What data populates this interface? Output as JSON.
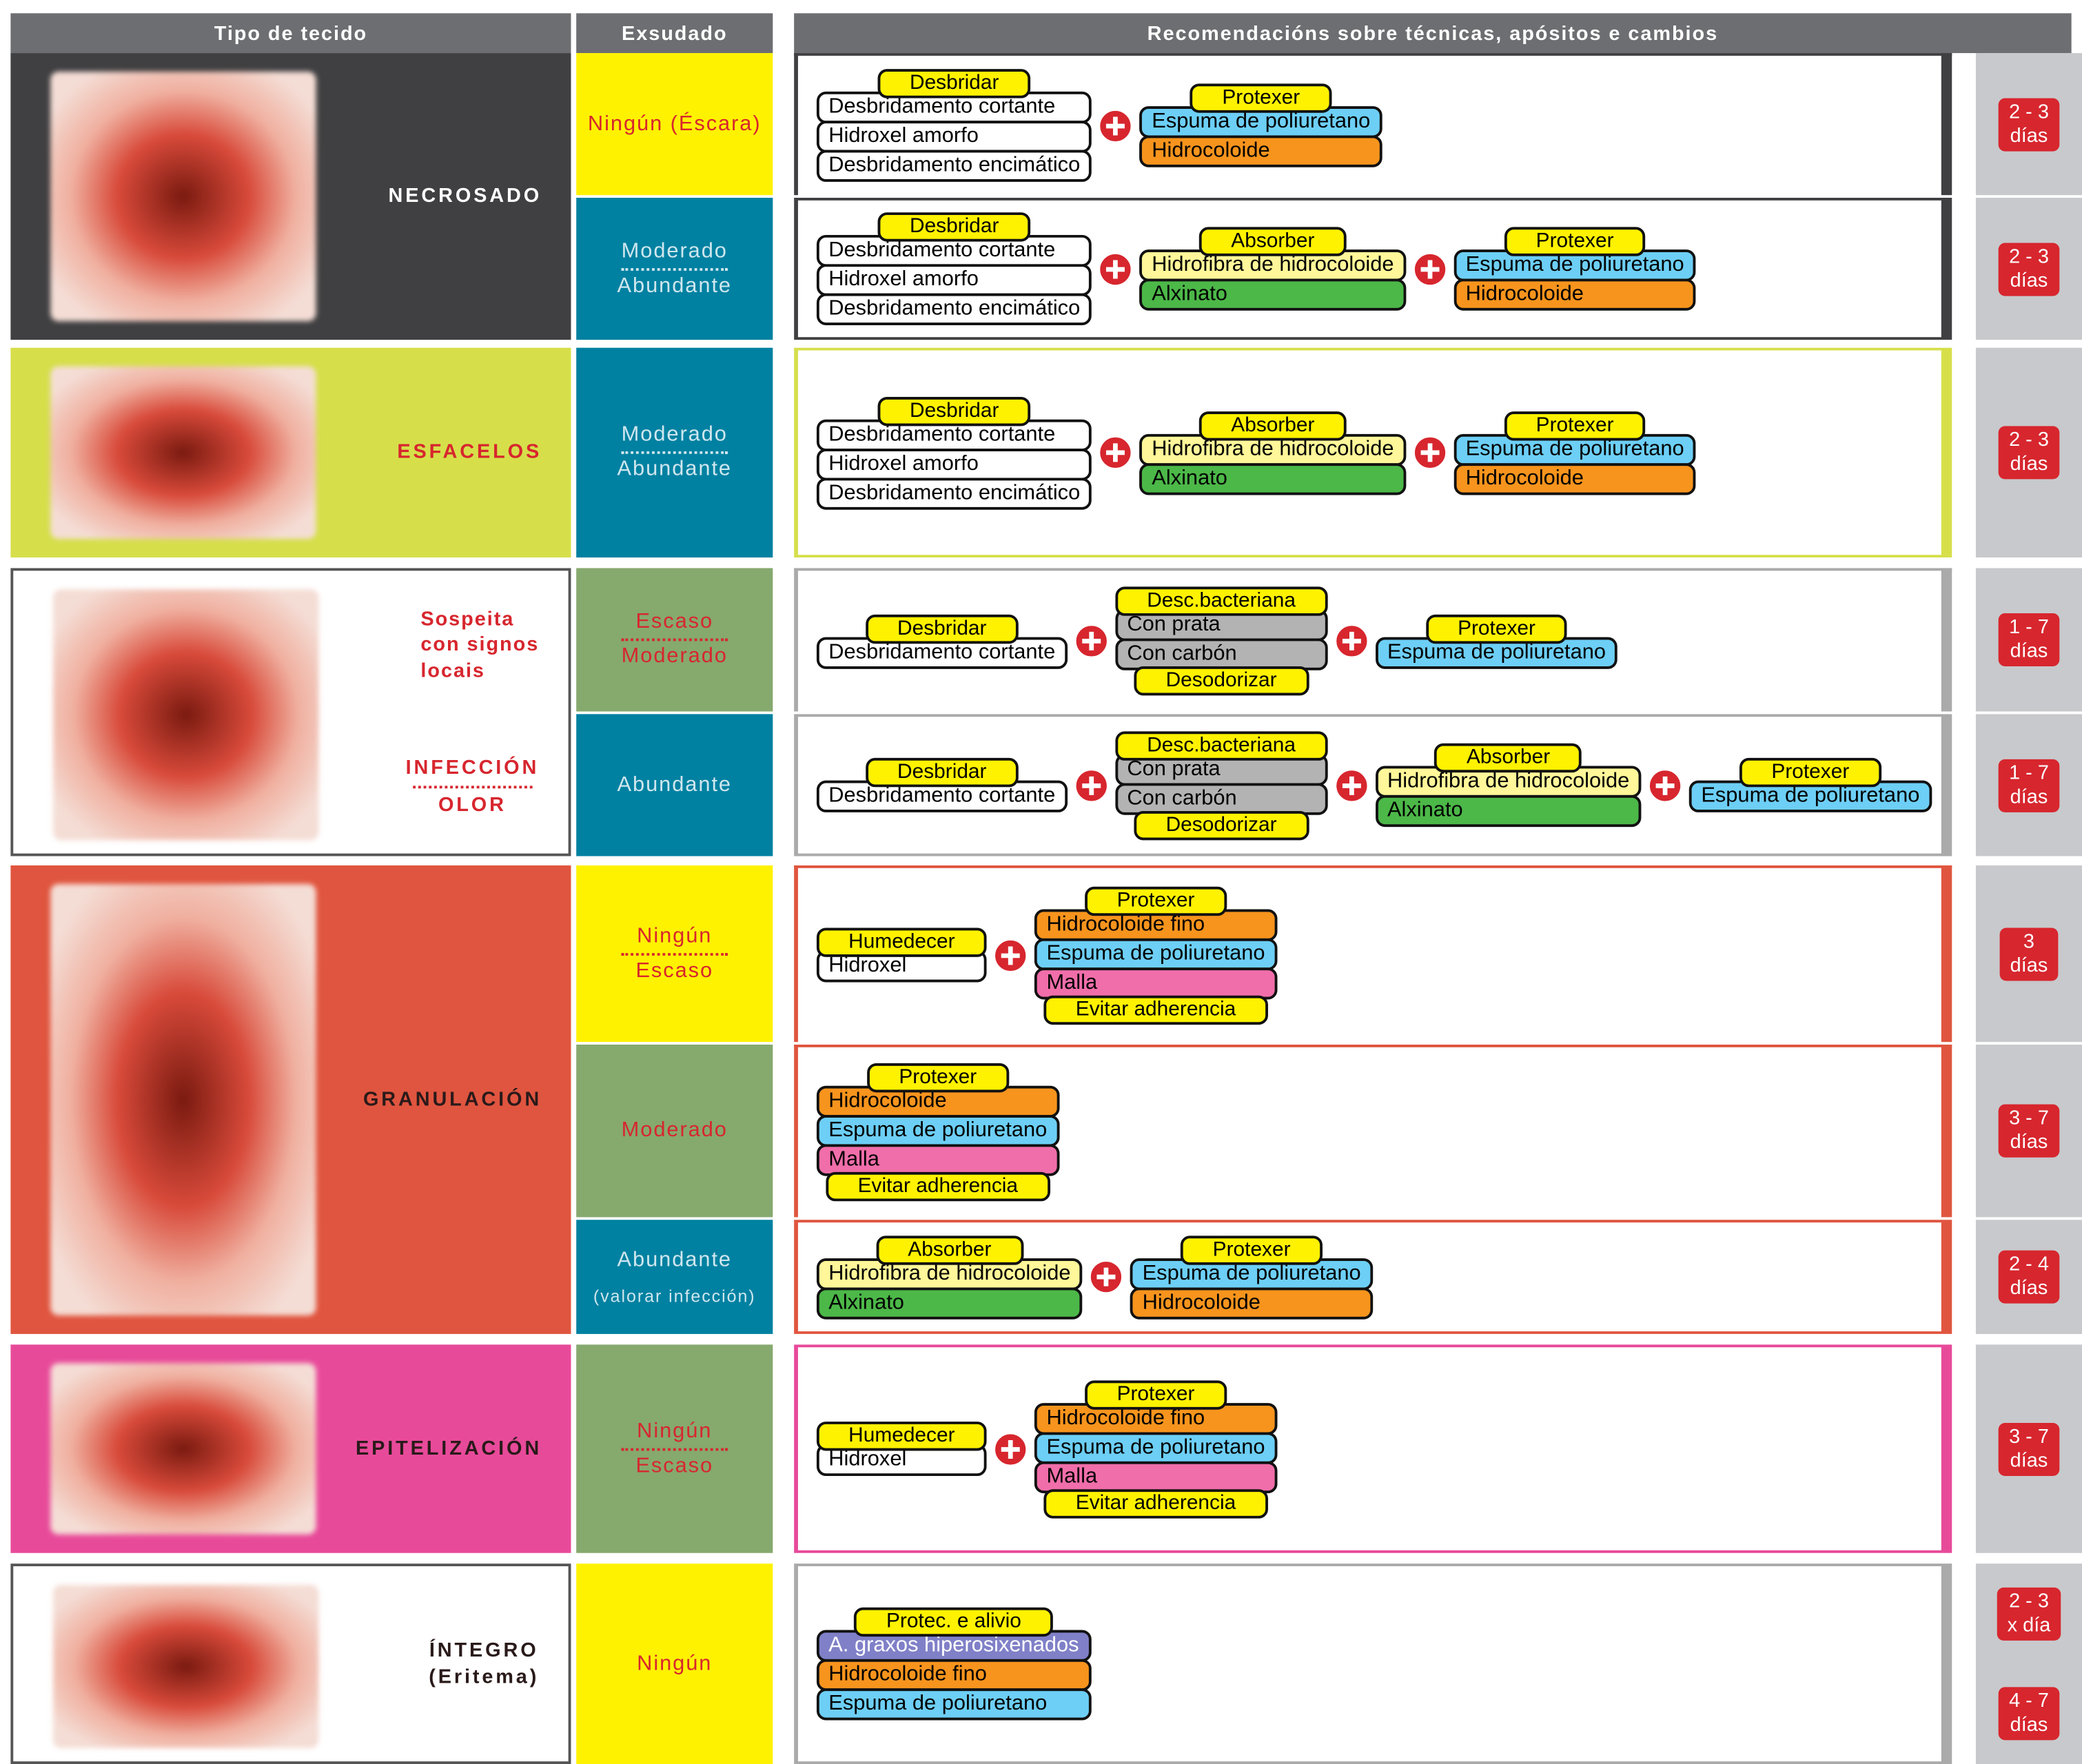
{
  "header": {
    "columns": [
      "Tipo de tecido",
      "Exsudado",
      "Recomendacións sobre técnicas, apósitos e cambios"
    ]
  },
  "sections": [
    {
      "color": "#404042",
      "text_color": "#ffffff",
      "tissue": [
        {
          "lines": [
            "NECROSADO"
          ],
          "dotted": false
        }
      ],
      "rows": [
        {
          "exudate": {
            "lines": [
              "Ningún (Éscara)"
            ],
            "color": "#fff200",
            "text_color": "#d7262e"
          },
          "groups": [
            {
              "top": "Desbridar",
              "items": [
                {
                  "text": "Desbridamento cortante",
                  "color": "#ffffff"
                },
                {
                  "text": "Hidroxel amorfo",
                  "color": "#ffffff"
                },
                {
                  "text": "Desbridamento encimático",
                  "color": "#ffffff"
                }
              ]
            },
            {
              "top": "Protexer",
              "items": [
                {
                  "text": "Espuma de poliuretano",
                  "color": "#6dcff6"
                },
                {
                  "text": "Hidrocoloide",
                  "color": "#f7941d"
                }
              ]
            }
          ],
          "freq": [
            [
              "2 - 3",
              "días"
            ]
          ]
        },
        {
          "exudate": {
            "lines": [
              "Moderado",
              "Abundante"
            ],
            "color": "#0081a1",
            "text_color": "#cfe6ee"
          },
          "groups": [
            {
              "top": "Desbridar",
              "items": [
                {
                  "text": "Desbridamento cortante",
                  "color": "#ffffff"
                },
                {
                  "text": "Hidroxel amorfo",
                  "color": "#ffffff"
                },
                {
                  "text": "Desbridamento encimático",
                  "color": "#ffffff"
                }
              ]
            },
            {
              "top": "Absorber",
              "items": [
                {
                  "text": "Hidrofibra de hidrocoloide",
                  "color": "#fff799"
                },
                {
                  "text": "Alxinato",
                  "color": "#4cb848"
                }
              ]
            },
            {
              "top": "Protexer",
              "items": [
                {
                  "text": "Espuma de poliuretano",
                  "color": "#6dcff6"
                },
                {
                  "text": "Hidrocoloide",
                  "color": "#f7941d"
                }
              ]
            }
          ],
          "freq": [
            [
              "2 - 3",
              "días"
            ]
          ]
        }
      ]
    },
    {
      "color": "#d6df4a",
      "text_color": "#d7262e",
      "tissue": [
        {
          "lines": [
            "ESFACELOS"
          ],
          "dotted": false
        }
      ],
      "rows": [
        {
          "exudate": {
            "lines": [
              "Moderado",
              "Abundante"
            ],
            "color": "#0081a1",
            "text_color": "#cfe6ee"
          },
          "groups": [
            {
              "top": "Desbridar",
              "items": [
                {
                  "text": "Desbridamento cortante",
                  "color": "#ffffff"
                },
                {
                  "text": "Hidroxel amorfo",
                  "color": "#ffffff"
                },
                {
                  "text": "Desbridamento encimático",
                  "color": "#ffffff"
                }
              ]
            },
            {
              "top": "Absorber",
              "items": [
                {
                  "text": "Hidrofibra de hidrocoloide",
                  "color": "#fff799"
                },
                {
                  "text": "Alxinato",
                  "color": "#4cb848"
                }
              ]
            },
            {
              "top": "Protexer",
              "items": [
                {
                  "text": "Espuma de poliuretano",
                  "color": "#6dcff6"
                },
                {
                  "text": "Hidrocoloide",
                  "color": "#f7941d"
                }
              ]
            }
          ],
          "freq": [
            [
              "2 - 3",
              "días"
            ]
          ]
        }
      ]
    },
    {
      "color": "#ffffff",
      "text_color": "#d7262e",
      "tissue": [
        {
          "lines": [
            "Sospeita",
            "con signos",
            "locais"
          ],
          "dotted": false
        },
        {
          "lines": [
            "INFECCIÓN",
            "OLOR"
          ],
          "dotted": true
        }
      ],
      "rows": [
        {
          "exudate": {
            "lines": [
              "Escaso",
              "Moderado"
            ],
            "color": "#86a96e",
            "text_color": "#d7262e"
          },
          "groups": [
            {
              "top": "Desbridar",
              "items": [
                {
                  "text": "Desbridamento cortante",
                  "color": "#ffffff"
                }
              ]
            },
            {
              "top": "Desc.bacteriana",
              "items": [
                {
                  "text": "Con prata",
                  "color": "#b3b3b3"
                },
                {
                  "text": "Con carbón",
                  "color": "#b3b3b3"
                }
              ],
              "bottom": "Desodorizar"
            },
            {
              "top": "Protexer",
              "items": [
                {
                  "text": "Espuma de poliuretano",
                  "color": "#6dcff6"
                }
              ]
            }
          ],
          "freq": [
            [
              "1 - 7",
              "días"
            ]
          ]
        },
        {
          "exudate": {
            "lines": [
              "Abundante"
            ],
            "color": "#0081a1",
            "text_color": "#cfe6ee"
          },
          "groups": [
            {
              "top": "Desbridar",
              "items": [
                {
                  "text": "Desbridamento cortante",
                  "color": "#ffffff"
                }
              ]
            },
            {
              "top": "Desc.bacteriana",
              "items": [
                {
                  "text": "Con prata",
                  "color": "#b3b3b3"
                },
                {
                  "text": "Con carbón",
                  "color": "#b3b3b3"
                }
              ],
              "bottom": "Desodorizar"
            },
            {
              "top": "Absorber",
              "items": [
                {
                  "text": "Hidrofibra de hidrocoloide",
                  "color": "#fff799"
                },
                {
                  "text": "Alxinato",
                  "color": "#4cb848"
                }
              ]
            },
            {
              "top": "Protexer",
              "items": [
                {
                  "text": "Espuma de poliuretano",
                  "color": "#6dcff6"
                }
              ]
            }
          ],
          "freq": [
            [
              "1 - 7",
              "días"
            ]
          ]
        }
      ]
    },
    {
      "color": "#e0553f",
      "text_color": "#2a1a1a",
      "tissue": [
        {
          "lines": [
            "GRANULACIÓN"
          ],
          "dotted": false
        }
      ],
      "rows": [
        {
          "exudate": {
            "lines": [
              "Ningún",
              "Escaso"
            ],
            "color": "#fff200",
            "text_color": "#d7262e"
          },
          "groups": [
            {
              "top": "Humedecer",
              "items": [
                {
                  "text": "Hidroxel",
                  "color": "#ffffff"
                }
              ]
            },
            {
              "top": "Protexer",
              "items": [
                {
                  "text": "Hidrocoloide fino",
                  "color": "#f7941d"
                },
                {
                  "text": "Espuma de poliuretano",
                  "color": "#6dcff6"
                },
                {
                  "text": "Malla",
                  "color": "#f06eaa"
                }
              ],
              "bottom": "Evitar adherencia"
            }
          ],
          "freq": [
            [
              "3",
              "días"
            ]
          ]
        },
        {
          "exudate": {
            "lines": [
              "Moderado"
            ],
            "color": "#86a96e",
            "text_color": "#d7262e"
          },
          "groups": [
            {
              "top": "Protexer",
              "items": [
                {
                  "text": "Hidrocoloide",
                  "color": "#f7941d"
                },
                {
                  "text": "Espuma de poliuretano",
                  "color": "#6dcff6"
                },
                {
                  "text": "Malla",
                  "color": "#f06eaa"
                }
              ],
              "bottom": "Evitar adherencia"
            }
          ],
          "freq": [
            [
              "3 - 7",
              "días"
            ]
          ]
        },
        {
          "exudate": {
            "lines": [
              "Abundante"
            ],
            "note": "(valorar infección)",
            "color": "#0081a1",
            "text_color": "#cfe6ee"
          },
          "groups": [
            {
              "top": "Absorber",
              "items": [
                {
                  "text": "Hidrofibra de hidrocoloide",
                  "color": "#fff799"
                },
                {
                  "text": "Alxinato",
                  "color": "#4cb848"
                }
              ]
            },
            {
              "top": "Protexer",
              "items": [
                {
                  "text": "Espuma de poliuretano",
                  "color": "#6dcff6"
                },
                {
                  "text": "Hidrocoloide",
                  "color": "#f7941d"
                }
              ]
            }
          ],
          "freq": [
            [
              "2 - 4",
              "días"
            ]
          ]
        }
      ]
    },
    {
      "color": "#e84a9a",
      "text_color": "#2a1a1a",
      "tissue": [
        {
          "lines": [
            "EPITELIZACIÓN"
          ],
          "dotted": false
        }
      ],
      "rows": [
        {
          "exudate": {
            "lines": [
              "Ningún",
              "Escaso"
            ],
            "color": "#86a96e",
            "text_color": "#d7262e"
          },
          "groups": [
            {
              "top": "Humedecer",
              "items": [
                {
                  "text": "Hidroxel",
                  "color": "#ffffff"
                }
              ]
            },
            {
              "top": "Protexer",
              "items": [
                {
                  "text": "Hidrocoloide fino",
                  "color": "#f7941d"
                },
                {
                  "text": "Espuma de poliuretano",
                  "color": "#6dcff6"
                },
                {
                  "text": "Malla",
                  "color": "#f06eaa"
                }
              ],
              "bottom": "Evitar adherencia"
            }
          ],
          "freq": [
            [
              "3 - 7",
              "días"
            ]
          ]
        }
      ]
    },
    {
      "color": "#ffffff",
      "text_color": "#2a1a1a",
      "tissue": [
        {
          "lines": [
            "ÍNTEGRO",
            "(Eritema)"
          ],
          "dotted": false
        }
      ],
      "rows": [
        {
          "exudate": {
            "lines": [
              "Ningún"
            ],
            "color": "#fff200",
            "text_color": "#d7262e"
          },
          "groups": [
            {
              "top": "Protec. e alivio",
              "items": [
                {
                  "text": "A. graxos hiperosixenados",
                  "color": "#8080c8"
                },
                {
                  "text": "Hidrocoloide fino",
                  "color": "#f7941d"
                },
                {
                  "text": "Espuma de poliuretano",
                  "color": "#6dcff6"
                }
              ]
            }
          ],
          "freq": [
            [
              "2 - 3",
              "x día"
            ],
            [
              "4 - 7",
              "días"
            ]
          ]
        }
      ]
    }
  ]
}
